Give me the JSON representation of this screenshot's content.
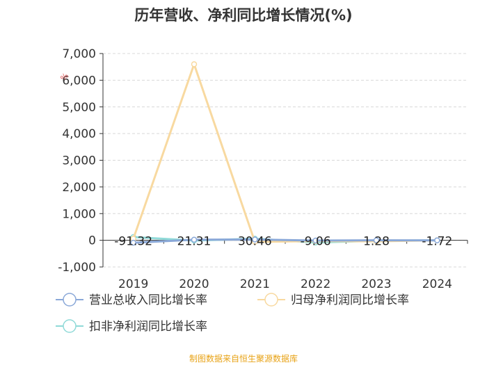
{
  "title": "历年营收、净利同比增长情况(%)",
  "source": "制图数据来自恒生聚源数据库",
  "unit_mark": "%",
  "chart_data": {
    "type": "line",
    "title": "历年营收、净利同比增长情况(%)",
    "categories": [
      "2019",
      "2020",
      "2021",
      "2022",
      "2023",
      "2024"
    ],
    "ylim": [
      -1000,
      7000
    ],
    "yticks": [
      "-1,000",
      "0",
      "1,000",
      "2,000",
      "3,000",
      "4,000",
      "5,000",
      "6,000",
      "7,000"
    ],
    "ytick_values": [
      -1000,
      0,
      1000,
      2000,
      3000,
      4000,
      5000,
      6000,
      7000
    ],
    "grid": true,
    "legend_position": "bottom",
    "series": [
      {
        "name": "营业总收入同比增长率",
        "color": "#8aa8d8",
        "values": [
          -91.32,
          21.31,
          30.46,
          -9.06,
          1.28,
          -1.72
        ]
      },
      {
        "name": "归母净利润同比增长率",
        "color": "#f8d9a0",
        "values": [
          60,
          6600,
          -60,
          -30,
          -40,
          0
        ]
      },
      {
        "name": "扣非净利润同比增长率",
        "color": "#8fdad8",
        "values": [
          120,
          -10,
          60,
          -80,
          -20,
          0
        ]
      }
    ],
    "data_labels": [
      "-91.32",
      "21.31",
      "30.46",
      "-9.06",
      "1.28",
      "-1.72"
    ]
  }
}
